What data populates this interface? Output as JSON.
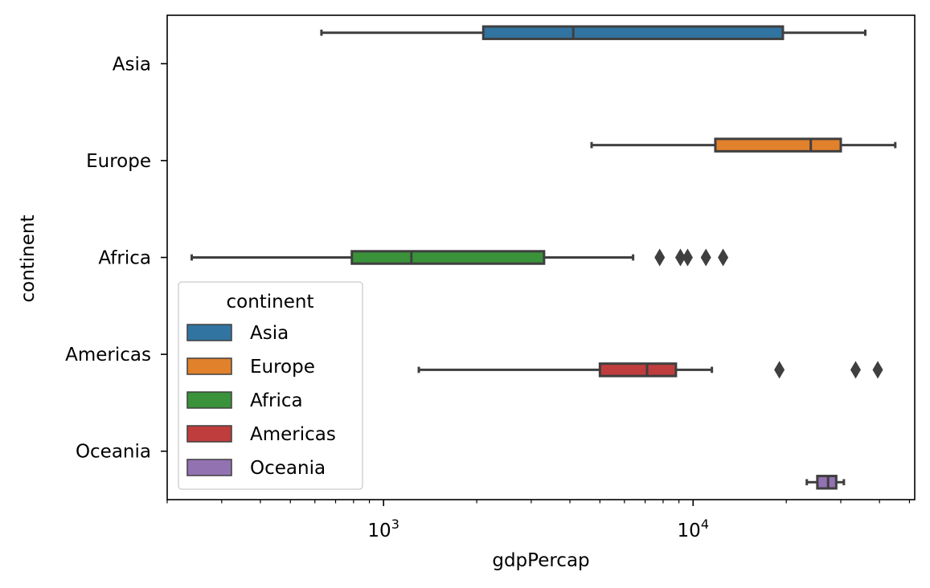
{
  "chart_data": {
    "type": "boxplot",
    "orientation": "horizontal",
    "xlabel": "gdpPercap",
    "ylabel": "continent",
    "xscale": "log",
    "xlim": [
      200,
      52000
    ],
    "x_major_ticks": [
      {
        "value": 1000,
        "base": "10",
        "exp": "3"
      },
      {
        "value": 10000,
        "base": "10",
        "exp": "4"
      }
    ],
    "x_minor_ticks": [
      200,
      300,
      400,
      500,
      600,
      700,
      800,
      900,
      2000,
      3000,
      4000,
      5000,
      6000,
      7000,
      8000,
      9000,
      20000,
      30000,
      40000,
      50000
    ],
    "categories": [
      "Asia",
      "Europe",
      "Africa",
      "Americas",
      "Oceania"
    ],
    "hue": "continent",
    "series": [
      {
        "name": "Asia",
        "color": "#3274a1",
        "whisker_low": 630,
        "q1": 2100,
        "median": 4100,
        "q3": 19500,
        "whisker_high": 36000,
        "outliers": []
      },
      {
        "name": "Europe",
        "color": "#e1812c",
        "whisker_low": 4700,
        "q1": 11800,
        "median": 24000,
        "q3": 30000,
        "whisker_high": 45000,
        "outliers": []
      },
      {
        "name": "Africa",
        "color": "#3a923a",
        "whisker_low": 240,
        "q1": 790,
        "median": 1230,
        "q3": 3300,
        "whisker_high": 6400,
        "outliers": [
          7800,
          9100,
          9600,
          11000,
          12500
        ]
      },
      {
        "name": "Americas",
        "color": "#c03d3e",
        "whisker_low": 1300,
        "q1": 5000,
        "median": 7100,
        "q3": 8800,
        "whisker_high": 11500,
        "outliers": [
          19000,
          33500,
          39500
        ]
      },
      {
        "name": "Oceania",
        "color": "#9372b2",
        "whisker_low": 23300,
        "q1": 25200,
        "median": 27300,
        "q3": 29000,
        "whisker_high": 30700,
        "outliers": []
      }
    ],
    "legend": {
      "title": "continent",
      "placement": "lower-left"
    },
    "grid": false
  }
}
